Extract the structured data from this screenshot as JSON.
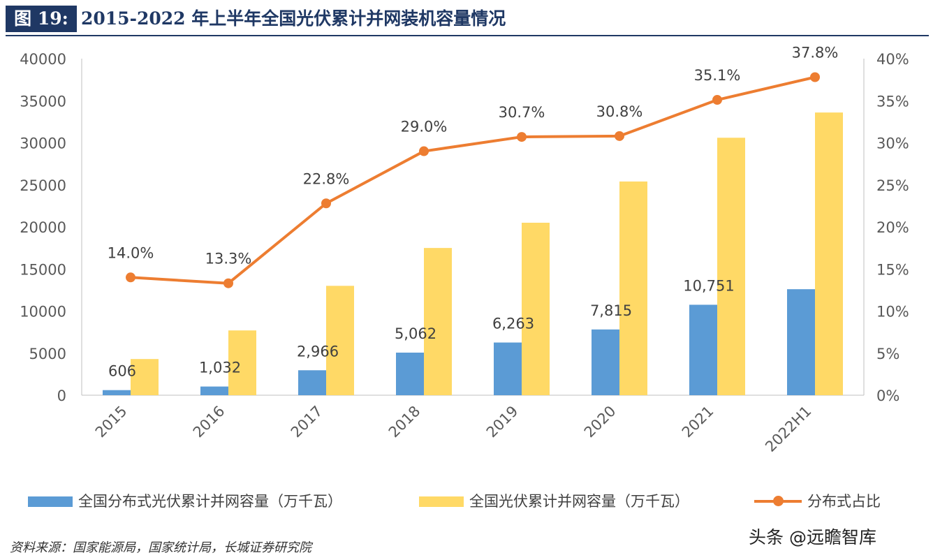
{
  "header": {
    "figure_label": "图 19:",
    "title": "2015-2022 年上半年全国光伏累计并网装机容量情况"
  },
  "chart_data": {
    "type": "bar+line",
    "categories": [
      "2015",
      "2016",
      "2017",
      "2018",
      "2019",
      "2020",
      "2021",
      "2022H1"
    ],
    "series": [
      {
        "name": "全国分布式光伏累计并网容量（万千瓦）",
        "type": "bar",
        "axis": "left",
        "color": "#5b9bd5",
        "values": [
          606,
          1032,
          2966,
          5062,
          6263,
          7815,
          10751,
          12600
        ],
        "labels": [
          "606",
          "1,032",
          "2,966",
          "5,062",
          "6,263",
          "7,815",
          "10,751",
          ""
        ]
      },
      {
        "name": "全国光伏累计并网容量（万千瓦）",
        "type": "bar",
        "axis": "right-of-pair",
        "color": "#ffd966",
        "values": [
          4300,
          7700,
          13000,
          17500,
          20500,
          25400,
          30600,
          33600
        ]
      },
      {
        "name": "分布式占比",
        "type": "line",
        "axis": "right",
        "color": "#ed7d31",
        "values": [
          14.0,
          13.3,
          22.8,
          29.0,
          30.7,
          30.8,
          35.1,
          37.8
        ],
        "labels": [
          "14.0%",
          "13.3%",
          "22.8%",
          "29.0%",
          "30.7%",
          "30.8%",
          "35.1%",
          "37.8%"
        ]
      }
    ],
    "y_left": {
      "range": [
        0,
        40000
      ],
      "ticks": [
        "0",
        "5000",
        "10000",
        "15000",
        "20000",
        "25000",
        "30000",
        "35000",
        "40000"
      ]
    },
    "y_right": {
      "range": [
        0,
        40
      ],
      "ticks": [
        "0%",
        "5%",
        "10%",
        "15%",
        "20%",
        "25%",
        "30%",
        "35%",
        "40%"
      ]
    },
    "grid": false,
    "legend_position": "bottom"
  },
  "source": "资料来源：国家能源局，国家统计局，长城证券研究院",
  "watermark": "头条 @远瞻智库"
}
